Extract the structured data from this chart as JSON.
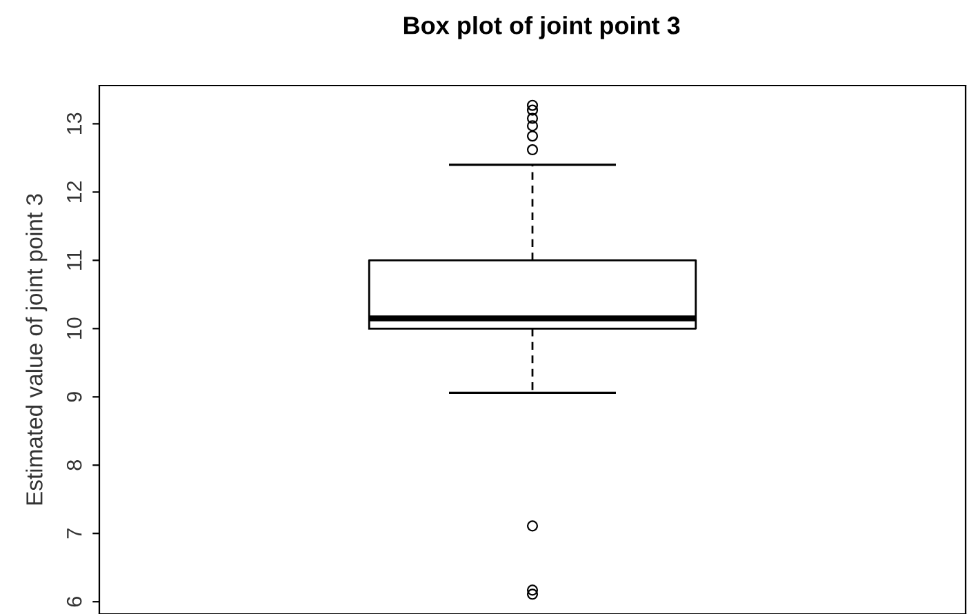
{
  "chart_data": {
    "type": "box",
    "title": "Box plot of joint point 3",
    "ylabel": "Estimated value of joint point 3",
    "categories": [
      null
    ],
    "boxes": [
      {
        "low": 9.06,
        "q1": 10.0,
        "median": 10.15,
        "q3": 11.0,
        "high": 12.4,
        "outliers": [
          12.62,
          12.82,
          12.97,
          13.08,
          13.2,
          13.27,
          7.11,
          6.17,
          6.11
        ]
      }
    ],
    "ylim": [
      5.82,
      13.56
    ],
    "yticks": [
      6,
      7,
      8,
      9,
      10,
      11,
      12,
      13
    ],
    "grid": false,
    "tick_labels": "y"
  }
}
